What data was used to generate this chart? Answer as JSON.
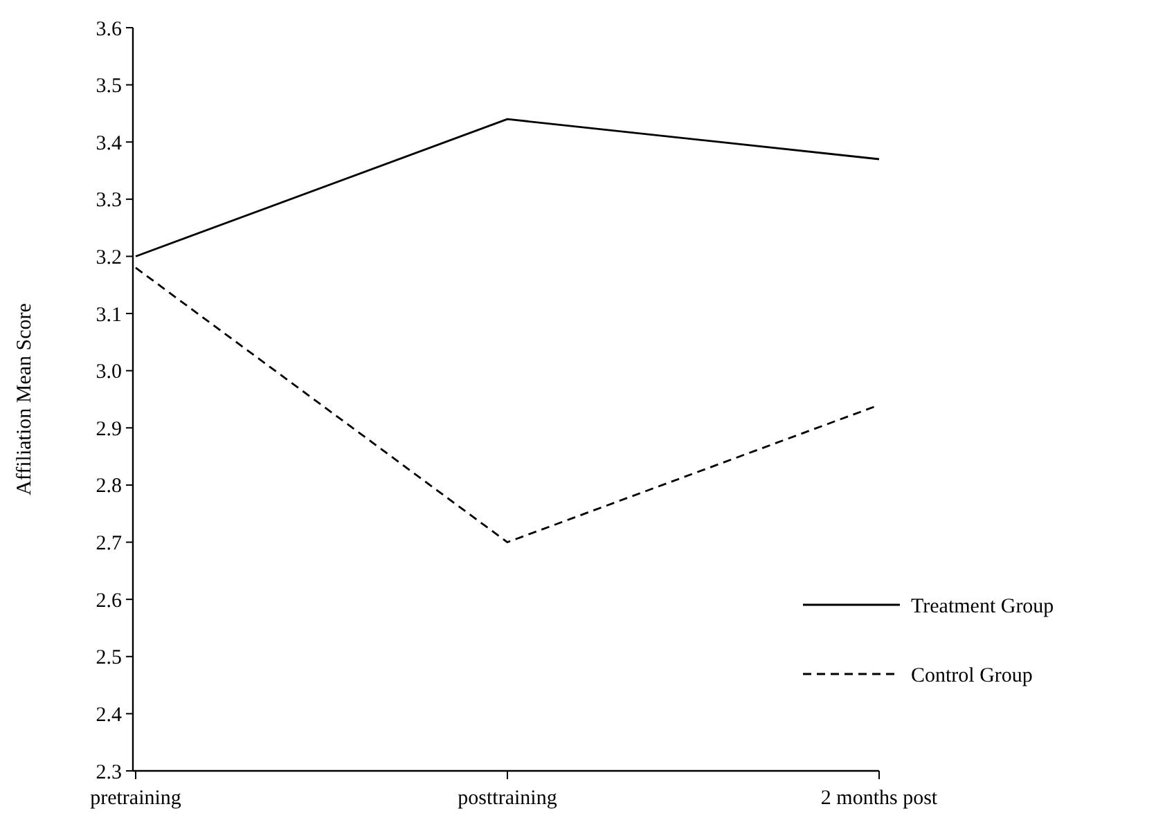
{
  "chart_data": {
    "type": "line",
    "ylabel": "Affiliation Mean Score",
    "categories": [
      "pretraining",
      "posttraining",
      "2 months post"
    ],
    "series": [
      {
        "name": "Treatment Group",
        "color": "#000000",
        "values": [
          3.2,
          3.44,
          3.37
        ],
        "line_style": "solid"
      },
      {
        "name": "Control Group",
        "color": "#000000",
        "values": [
          3.18,
          2.7,
          2.94
        ],
        "line_style": "dashed"
      }
    ],
    "ylim": [
      2.3,
      3.6
    ],
    "yticks": [
      2.3,
      2.4,
      2.5,
      2.6,
      2.7,
      2.8,
      2.9,
      {
        "value": 3,
        "label": "3.0"
      },
      3.1,
      3.2,
      3.3,
      3.4,
      3.5,
      3.6
    ],
    "grid": false,
    "legend": "right",
    "marker": "none"
  }
}
